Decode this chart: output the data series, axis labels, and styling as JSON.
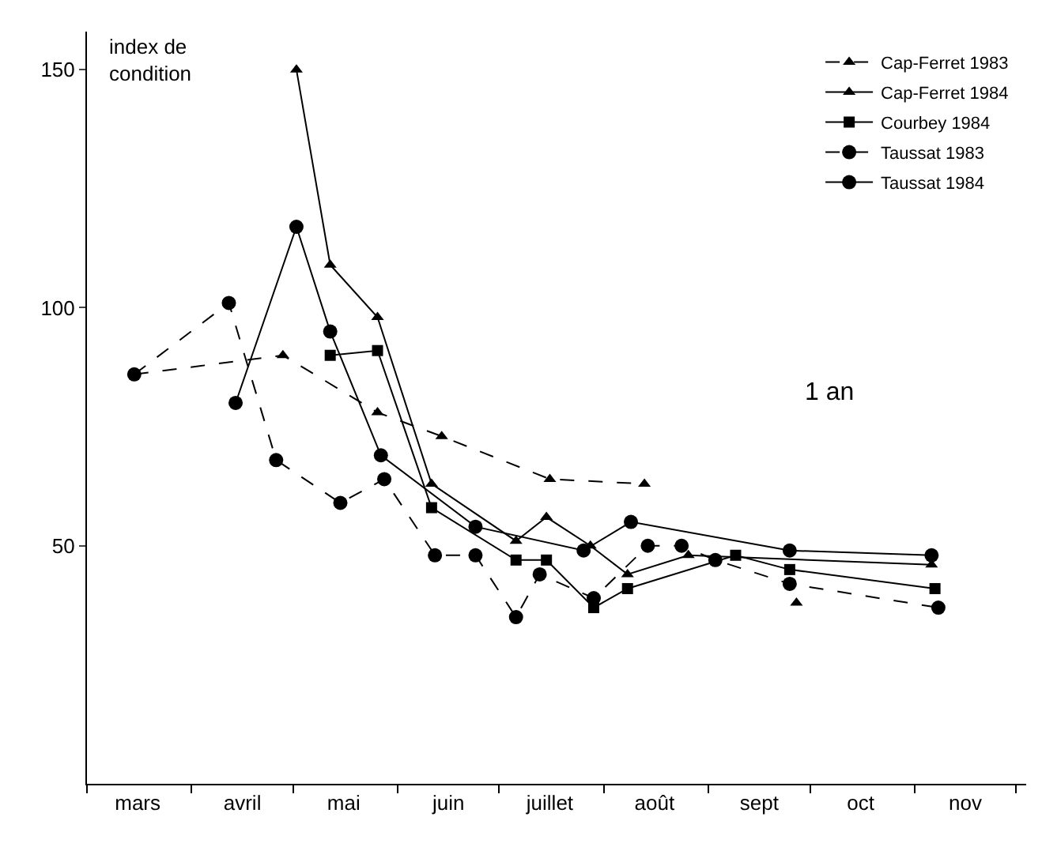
{
  "chart_data": {
    "type": "line",
    "ylabel": "index de\ncondition",
    "annotations": [
      "1 an"
    ],
    "xlim": [
      "--03-01",
      "--12-04"
    ],
    "ylim": [
      0,
      158
    ],
    "xticks": [
      {
        "value": "--03-01",
        "label": null
      },
      {
        "value": "--03-16",
        "label": "mars"
      },
      {
        "value": "--04-01",
        "label": null
      },
      {
        "value": "--04-16",
        "label": "avril"
      },
      {
        "value": "--05-01",
        "label": null
      },
      {
        "value": "--05-16",
        "label": "mai"
      },
      {
        "value": "--06-01",
        "label": null
      },
      {
        "value": "--06-16",
        "label": "juin"
      },
      {
        "value": "--07-01",
        "label": null
      },
      {
        "value": "--07-16",
        "label": "juillet"
      },
      {
        "value": "--08-01",
        "label": null
      },
      {
        "value": "--08-16",
        "label": "août"
      },
      {
        "value": "--09-01",
        "label": null
      },
      {
        "value": "--09-16",
        "label": "sept"
      },
      {
        "value": "--10-01",
        "label": null
      },
      {
        "value": "--10-16",
        "label": "oct"
      },
      {
        "value": "--11-01",
        "label": null
      },
      {
        "value": "--11-16",
        "label": "nov"
      },
      {
        "value": "--12-01",
        "label": null
      }
    ],
    "yticks": [
      50,
      100,
      150
    ],
    "grid": false,
    "legend": "top right",
    "series": [
      {
        "name": "Cap-Ferret 1983",
        "color": "#000000",
        "marker": "triangle",
        "line_style": "dashed",
        "x": [
          "--03-15",
          "--04-28",
          "--05-26",
          "--06-14",
          "--07-16",
          "--08-13",
          "--09-04",
          "--09-27"
        ],
        "values": [
          86,
          90,
          78,
          73,
          64,
          63,
          null,
          38
        ]
      },
      {
        "name": "Cap-Ferret 1984",
        "color": "#000000",
        "marker": "triangle",
        "line_style": "solid",
        "x": [
          "--05-02",
          "--05-12",
          "--05-26",
          "--06-11",
          "--07-06",
          "--07-15",
          "--07-28",
          "--08-08",
          "--08-26",
          "--11-06"
        ],
        "values": [
          150,
          109,
          98,
          63,
          51,
          56,
          50,
          44,
          48,
          46
        ]
      },
      {
        "name": "Courbey 1984",
        "color": "#000000",
        "marker": "square",
        "line_style": "solid",
        "x": [
          "--05-12",
          "--05-26",
          "--06-11",
          "--07-06",
          "--07-15",
          "--07-29",
          "--08-08",
          "--09-09",
          "--09-25",
          "--11-07"
        ],
        "values": [
          90,
          91,
          58,
          47,
          47,
          37,
          41,
          48,
          45,
          41
        ]
      },
      {
        "name": "Taussat 1983",
        "color": "#000000",
        "marker": "circle",
        "line_style": "dashed",
        "x": [
          "--03-15",
          "--04-12",
          "--04-26",
          "--05-15",
          "--05-28",
          "--06-12",
          "--06-24",
          "--07-06",
          "--07-13",
          "--07-29",
          "--08-14",
          "--08-24",
          "--09-03",
          "--09-25",
          "--11-08"
        ],
        "values": [
          86,
          101,
          68,
          59,
          64,
          48,
          48,
          35,
          44,
          39,
          50,
          50,
          47,
          42,
          37
        ]
      },
      {
        "name": "Taussat 1984",
        "color": "#000000",
        "marker": "circle",
        "line_style": "solid",
        "x": [
          "--04-14",
          "--05-02",
          "--05-12",
          "--05-27",
          "--06-24",
          "--07-26",
          "--08-09",
          "--09-25",
          "--11-06"
        ],
        "values": [
          80,
          117,
          95,
          69,
          54,
          49,
          55,
          49,
          48
        ]
      }
    ]
  }
}
